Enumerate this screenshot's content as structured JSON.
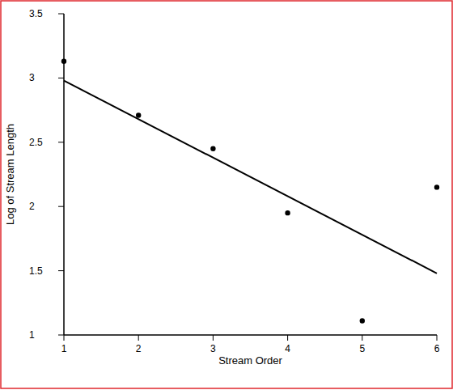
{
  "chart_data": {
    "type": "scatter",
    "x_label": "Stream Order",
    "y_label": "Log of Stream Length",
    "xlim": [
      1,
      6
    ],
    "xticks": [
      1,
      2,
      3,
      4,
      5,
      6
    ],
    "ylim": [
      1,
      3.5
    ],
    "yticks": [
      1,
      1.5,
      2,
      2.5,
      3,
      3.5
    ],
    "grid": false,
    "series": [
      {
        "type": "scatter",
        "marker": "circle",
        "color": "#000000",
        "x": [
          1,
          2,
          3,
          4,
          5,
          6
        ],
        "values": [
          3.13,
          2.71,
          2.45,
          1.95,
          1.11,
          2.15
        ]
      },
      {
        "type": "line",
        "line_style": "solid",
        "color": "#000000",
        "x": [
          1,
          6
        ],
        "values": [
          2.98,
          1.48
        ]
      }
    ]
  }
}
